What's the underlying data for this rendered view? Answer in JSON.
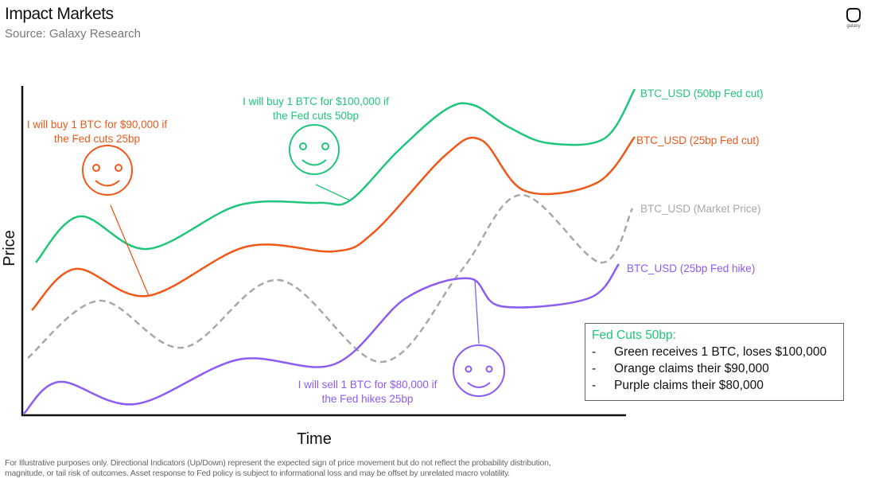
{
  "header": {
    "title": "Impact Markets",
    "subtitle": "Source: Galaxy Research",
    "logo_text": "galaxy"
  },
  "axes": {
    "y_label": "Price",
    "x_label": "Time"
  },
  "colors": {
    "green": "#1fc67a",
    "orange": "#f0581a",
    "gray": "#a8a8a8",
    "purple": "#8b5cf6"
  },
  "series": [
    {
      "name": "BTC_USD (50bp Fed cut)",
      "color": "green",
      "style": "solid"
    },
    {
      "name": "BTC_USD (25bp Fed cut)",
      "color": "orange",
      "style": "solid"
    },
    {
      "name": "BTC_USD (Market Price)",
      "color": "gray",
      "style": "dashed"
    },
    {
      "name": "BTC_USD (25bp Fed hike)",
      "color": "purple",
      "style": "solid"
    }
  ],
  "callouts": {
    "orange": {
      "line1": "I will buy 1 BTC for $90,000 if",
      "line2": "the Fed cuts 25bp",
      "icon": "smiley-icon"
    },
    "green": {
      "line1": "I will buy 1 BTC for $100,000 if",
      "line2": "the Fed cuts 50bp",
      "icon": "smiley-icon"
    },
    "purple": {
      "line1": "I will sell 1 BTC for $80,000 if",
      "line2": "the Fed hikes 25bp",
      "icon": "smiley-icon"
    }
  },
  "summary": {
    "heading": "Fed Cuts 50bp:",
    "bullet": "-",
    "items": [
      "Green receives 1 BTC, loses $100,000",
      "Orange claims their $90,000",
      "Purple claims their $80,000"
    ]
  },
  "footer": {
    "line1": "For Illustrative purposes only. Directional Indicators (Up/Down) represent the expected sign of price movement but do not reflect the probability distribution,",
    "line2": "magnitude, or tail risk of outcomes. Asset response to Fed policy is subject to informational loss and may be offset by unrelated macro volatility."
  }
}
